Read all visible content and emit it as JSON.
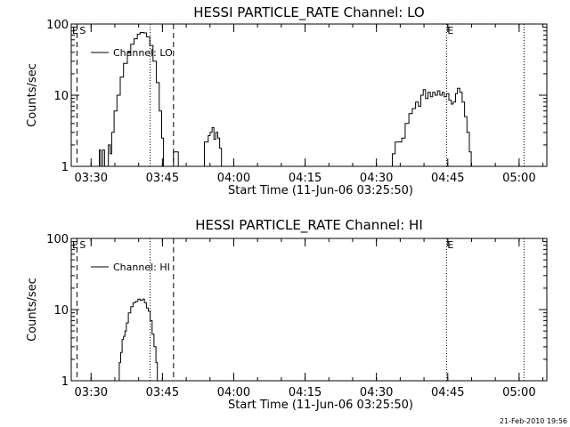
{
  "footer": {
    "timestamp": "21-Feb-2010 19:56"
  },
  "chart_data": [
    {
      "type": "line",
      "title": "HESSI PARTICLE_RATE Channel: LO",
      "xlabel": "Start Time (11-Jun-06 03:25:50)",
      "ylabel": "Counts/sec",
      "yscale": "log",
      "ylim": [
        1,
        100
      ],
      "xlim_minutes": [
        0,
        100
      ],
      "xtick_labels": [
        "03:30",
        "03:45",
        "04:00",
        "04:15",
        "04:30",
        "04:45",
        "05:00"
      ],
      "xtick_minutes": [
        4.17,
        19.17,
        34.17,
        49.17,
        64.17,
        79.17,
        94.17
      ],
      "ytick_labels": [
        "1",
        "10",
        "100"
      ],
      "ytick_values": [
        1,
        10,
        100
      ],
      "legend": "Channel: LO",
      "legend_position": "top-left",
      "markers": [
        {
          "label": "S",
          "minute": 1.2,
          "style": "dashed"
        },
        {
          "label": "E",
          "minute": 21.5,
          "style": "dashed"
        },
        {
          "label": "",
          "minute": 16.6,
          "style": "dotted"
        },
        {
          "label": "E",
          "minute": 78.9,
          "style": "dotted"
        },
        {
          "label": "",
          "minute": 95.2,
          "style": "dotted"
        }
      ],
      "series": [
        {
          "name": "Channel: LO",
          "segments": [
            [
              [
                5.6,
                1
              ],
              [
                5.9,
                1.7
              ],
              [
                6.2,
                1
              ],
              [
                6.6,
                1.7
              ],
              [
                7.0,
                1
              ],
              [
                7.4,
                1
              ],
              [
                7.8,
                2
              ],
              [
                8.2,
                1.5
              ],
              [
                8.5,
                3
              ],
              [
                9,
                6
              ],
              [
                9.6,
                10
              ],
              [
                10.3,
                18
              ],
              [
                11,
                28
              ],
              [
                11.8,
                40
              ],
              [
                12.5,
                52
              ],
              [
                13.2,
                62
              ],
              [
                13.9,
                72
              ],
              [
                14.5,
                76
              ],
              [
                15.2,
                75
              ],
              [
                15.8,
                66
              ],
              [
                16.5,
                50
              ],
              [
                17.2,
                30
              ],
              [
                17.9,
                15
              ],
              [
                18.5,
                6
              ],
              [
                19.0,
                2.5
              ],
              [
                19.4,
                1
              ]
            ],
            [
              [
                21.1,
                1
              ],
              [
                21.5,
                1.6
              ],
              [
                22.0,
                1.6
              ],
              [
                22.5,
                1
              ]
            ],
            [
              [
                27.5,
                1
              ],
              [
                28.0,
                2.2
              ],
              [
                28.4,
                2.2
              ],
              [
                28.8,
                2.7
              ],
              [
                29.2,
                3
              ],
              [
                29.6,
                3.5
              ],
              [
                30.0,
                2.4
              ],
              [
                30.4,
                3
              ],
              [
                30.8,
                2.5
              ],
              [
                31.2,
                1.8
              ],
              [
                31.6,
                1
              ]
            ],
            [
              [
                67.0,
                1
              ],
              [
                67.5,
                1.5
              ],
              [
                68.1,
                2.2
              ],
              [
                68.8,
                2.2
              ],
              [
                69.5,
                2.5
              ],
              [
                70.2,
                4
              ],
              [
                71,
                5.5
              ],
              [
                71.7,
                6.5
              ],
              [
                72.4,
                8
              ],
              [
                73.0,
                7
              ],
              [
                73.5,
                10
              ],
              [
                74.0,
                12
              ],
              [
                74.5,
                9
              ],
              [
                75.0,
                11
              ],
              [
                75.5,
                9.5
              ],
              [
                76.0,
                11
              ],
              [
                76.5,
                10
              ],
              [
                77.0,
                11.5
              ],
              [
                77.5,
                10
              ],
              [
                78.0,
                11
              ],
              [
                78.4,
                9.5
              ],
              [
                78.9,
                10.5
              ],
              [
                79.4,
                8.5
              ],
              [
                79.9,
                7.5
              ],
              [
                80.3,
                8
              ],
              [
                80.8,
                10.5
              ],
              [
                81.2,
                12.5
              ],
              [
                81.7,
                11
              ],
              [
                82.2,
                8
              ],
              [
                82.7,
                5
              ],
              [
                83.2,
                3
              ],
              [
                83.7,
                1.6
              ],
              [
                84.1,
                1
              ]
            ]
          ]
        }
      ]
    },
    {
      "type": "line",
      "title": "HESSI PARTICLE_RATE Channel: HI",
      "xlabel": "Start Time (11-Jun-06 03:25:50)",
      "ylabel": "Counts/sec",
      "yscale": "log",
      "ylim": [
        1,
        100
      ],
      "xlim_minutes": [
        0,
        100
      ],
      "xtick_labels": [
        "03:30",
        "03:45",
        "04:00",
        "04:15",
        "04:30",
        "04:45",
        "05:00"
      ],
      "xtick_minutes": [
        4.17,
        19.17,
        34.17,
        49.17,
        64.17,
        79.17,
        94.17
      ],
      "ytick_labels": [
        "1",
        "10",
        "100"
      ],
      "ytick_values": [
        1,
        10,
        100
      ],
      "legend": "Channel: HI",
      "legend_position": "top-left",
      "markers": [
        {
          "label": "S",
          "minute": 1.2,
          "style": "dashed"
        },
        {
          "label": "E",
          "minute": 21.5,
          "style": "dashed"
        },
        {
          "label": "",
          "minute": 16.6,
          "style": "dotted"
        },
        {
          "label": "E",
          "minute": 78.9,
          "style": "dotted"
        },
        {
          "label": "",
          "minute": 95.2,
          "style": "dotted"
        }
      ],
      "series": [
        {
          "name": "Channel: HI",
          "segments": [
            [
              [
                9.8,
                1
              ],
              [
                10.1,
                1.8
              ],
              [
                10.4,
                2.5
              ],
              [
                10.7,
                3.8
              ],
              [
                11.0,
                4.2
              ],
              [
                11.3,
                5
              ],
              [
                11.6,
                6.5
              ],
              [
                12.0,
                9
              ],
              [
                12.5,
                11
              ],
              [
                13.0,
                12.5
              ],
              [
                13.5,
                13
              ],
              [
                14.0,
                14
              ],
              [
                14.5,
                13.5
              ],
              [
                15.0,
                14
              ],
              [
                15.4,
                12.5
              ],
              [
                15.8,
                10.5
              ],
              [
                16.2,
                9.5
              ],
              [
                16.6,
                7
              ],
              [
                17.0,
                4.5
              ],
              [
                17.4,
                3
              ],
              [
                17.8,
                1.8
              ],
              [
                18.1,
                1
              ]
            ]
          ]
        }
      ]
    }
  ]
}
